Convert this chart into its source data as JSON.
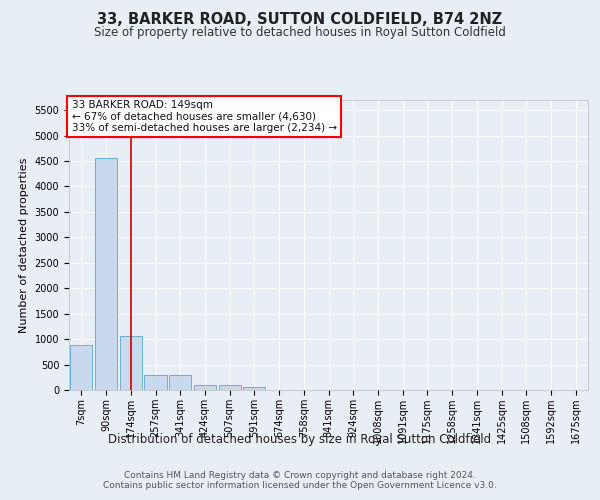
{
  "title": "33, BARKER ROAD, SUTTON COLDFIELD, B74 2NZ",
  "subtitle": "Size of property relative to detached houses in Royal Sutton Coldfield",
  "xlabel": "Distribution of detached houses by size in Royal Sutton Coldfield",
  "ylabel": "Number of detached properties",
  "footer_line1": "Contains HM Land Registry data © Crown copyright and database right 2024.",
  "footer_line2": "Contains public sector information licensed under the Open Government Licence v3.0.",
  "bar_labels": [
    "7sqm",
    "90sqm",
    "174sqm",
    "257sqm",
    "341sqm",
    "424sqm",
    "507sqm",
    "591sqm",
    "674sqm",
    "758sqm",
    "841sqm",
    "924sqm",
    "1008sqm",
    "1091sqm",
    "1175sqm",
    "1258sqm",
    "1341sqm",
    "1425sqm",
    "1508sqm",
    "1592sqm",
    "1675sqm"
  ],
  "bar_values": [
    880,
    4560,
    1060,
    290,
    290,
    95,
    95,
    60,
    0,
    0,
    0,
    0,
    0,
    0,
    0,
    0,
    0,
    0,
    0,
    0,
    0
  ],
  "bar_color": "#c8d9ee",
  "bar_edge_color": "#6baed6",
  "vline_color": "#cc0000",
  "ylim": [
    0,
    5700
  ],
  "yticks": [
    0,
    500,
    1000,
    1500,
    2000,
    2500,
    3000,
    3500,
    4000,
    4500,
    5000,
    5500
  ],
  "annotation_text": "33 BARKER ROAD: 149sqm\n← 67% of detached houses are smaller (4,630)\n33% of semi-detached houses are larger (2,234) →",
  "vline_x": 2.0,
  "bg_color": "#e8eef5",
  "plot_bg_color": "#e8eef5",
  "grid_color": "#ffffff",
  "title_fontsize": 10.5,
  "subtitle_fontsize": 8.5,
  "ylabel_fontsize": 8,
  "xlabel_fontsize": 8.5,
  "tick_fontsize": 7,
  "annotation_fontsize": 7.5,
  "footer_fontsize": 6.5
}
